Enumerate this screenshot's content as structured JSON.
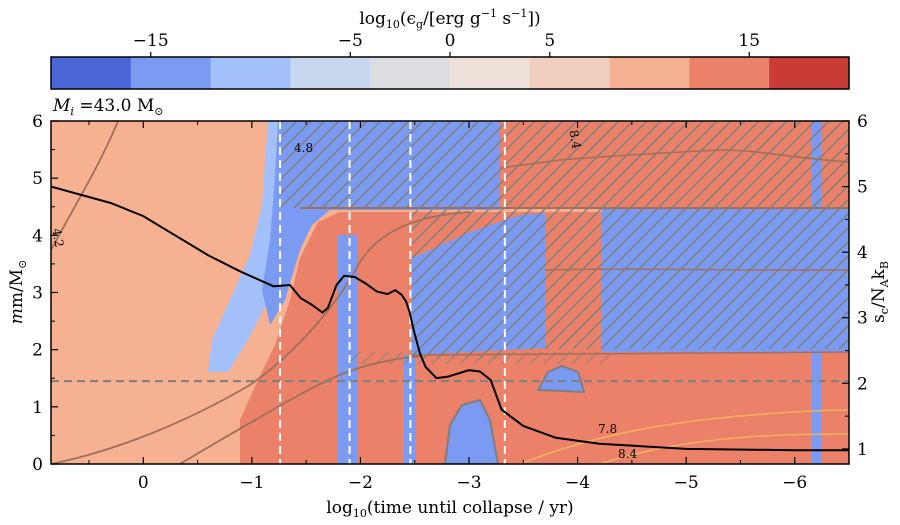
{
  "chart_data": {
    "type": "heatmap",
    "colorbar": {
      "label_main": "log",
      "label_sub": "10",
      "label_rest": "(ϵ",
      "label_g": "g",
      "label_units": "/[erg g",
      "label_exp1": "−1",
      "label_s": " s",
      "label_exp2": "−1",
      "label_close": "])",
      "bins": [
        -20,
        -15,
        -10,
        -5,
        0,
        5,
        10,
        15,
        20
      ],
      "ticks": [
        {
          "value": -15,
          "label": "−15"
        },
        {
          "value": -5,
          "label": "−5"
        },
        {
          "value": 0,
          "label": "0"
        },
        {
          "value": 5,
          "label": "5"
        },
        {
          "value": 15,
          "label": "15"
        }
      ],
      "colors": [
        "#4a66d6",
        "#7b9bf2",
        "#a4c0fb",
        "#c8d6ee",
        "#dcdde1",
        "#ece0d9",
        "#f0cfbf",
        "#f6b193",
        "#ea8168",
        "#c93b35"
      ]
    },
    "mass_label_symbol": "M",
    "mass_label_sub": "i",
    "mass_label_value": " =43.0 M",
    "mass_label_sun": "⊙",
    "x_axis": {
      "label": "log10(time until collapse / yr)",
      "label_pre": "log",
      "label_sub": "10",
      "label_post": "(time until collapse / yr)",
      "range": [
        0.85,
        -6.5
      ],
      "ticks": [
        {
          "value": 0,
          "label": "0"
        },
        {
          "value": -1,
          "label": "−1"
        },
        {
          "value": -2,
          "label": "−2"
        },
        {
          "value": -3,
          "label": "−3"
        },
        {
          "value": -4,
          "label": "−4"
        },
        {
          "value": -5,
          "label": "−5"
        },
        {
          "value": -6,
          "label": "−6"
        }
      ]
    },
    "y_axis_left": {
      "label_pre": "m/M",
      "label_sun": "⊙",
      "range": [
        0,
        6
      ],
      "ticks": [
        "0",
        "1",
        "2",
        "3",
        "4",
        "5",
        "6"
      ]
    },
    "y_axis_right": {
      "label_s": "s",
      "label_c": "c",
      "label_n": "/N",
      "label_a": "A",
      "label_k": "k",
      "label_b": "B",
      "range": [
        0.77,
        6
      ],
      "ticks": [
        "1",
        "2",
        "3",
        "4",
        "5",
        "6"
      ]
    },
    "vertical_markers_x": [
      -1.26,
      -1.9,
      -2.46,
      -3.33
    ],
    "horizontal_marker_m": 1.45,
    "central_entropy": {
      "x": [
        0.85,
        0.3,
        0.0,
        -0.3,
        -0.6,
        -0.9,
        -1.2,
        -1.35,
        -1.45,
        -1.55,
        -1.65,
        -1.7,
        -1.78,
        -1.85,
        -1.95,
        -2.05,
        -2.15,
        -2.25,
        -2.32,
        -2.38,
        -2.42,
        -2.45,
        -2.5,
        -2.55,
        -2.6,
        -2.7,
        -2.8,
        -2.9,
        -3.0,
        -3.1,
        -3.2,
        -3.3,
        -3.5,
        -3.8,
        -4.2,
        -5.0,
        -6.0,
        -6.5
      ],
      "s": [
        5.0,
        4.75,
        4.55,
        4.25,
        3.95,
        3.7,
        3.48,
        3.5,
        3.3,
        3.2,
        3.08,
        3.15,
        3.5,
        3.64,
        3.62,
        3.52,
        3.4,
        3.36,
        3.42,
        3.35,
        3.25,
        3.1,
        2.75,
        2.45,
        2.25,
        2.08,
        2.1,
        2.15,
        2.2,
        2.18,
        2.05,
        1.6,
        1.35,
        1.17,
        1.08,
        1.0,
        0.98,
        0.98
      ]
    },
    "contour_labels": [
      "4.2",
      "4.8",
      "7.8",
      "8.4",
      "8.4"
    ]
  }
}
